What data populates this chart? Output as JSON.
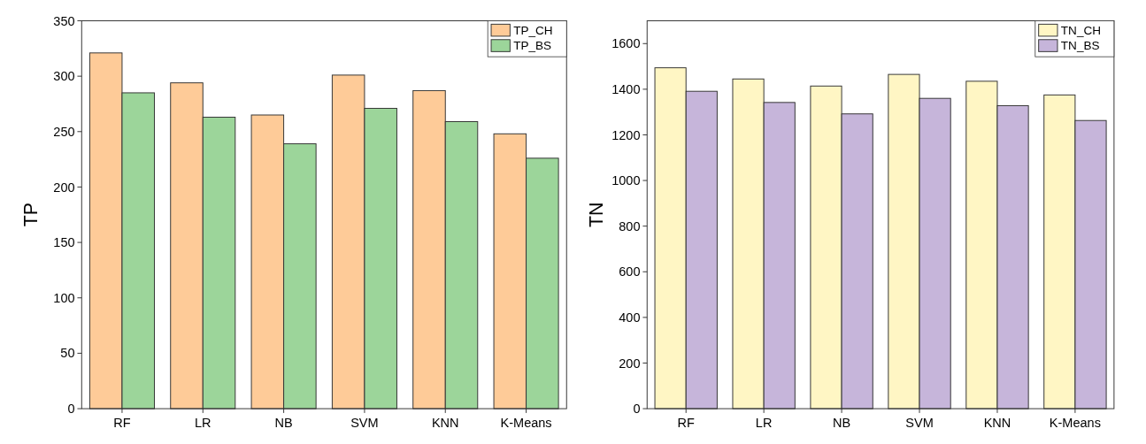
{
  "chart_data": [
    {
      "type": "bar",
      "ylabel": "TP",
      "categories": [
        "RF",
        "LR",
        "NB",
        "SVM",
        "KNN",
        "K-Means"
      ],
      "series": [
        {
          "name": "TP_CH",
          "color": "#fecb98",
          "values": [
            321,
            294,
            265,
            301,
            287,
            248
          ]
        },
        {
          "name": "TP_BS",
          "color": "#9cd59a",
          "values": [
            285,
            263,
            239,
            271,
            259,
            226
          ]
        }
      ],
      "ylim": [
        0,
        350
      ],
      "yticks": [
        0,
        50,
        100,
        150,
        200,
        250,
        300,
        350
      ],
      "legend": "top right",
      "grid": false
    },
    {
      "type": "bar",
      "ylabel": "TN",
      "categories": [
        "RF",
        "LR",
        "NB",
        "SVM",
        "KNN",
        "K-Means"
      ],
      "series": [
        {
          "name": "TN_CH",
          "color": "#fff6c4",
          "values": [
            1494,
            1445,
            1414,
            1465,
            1435,
            1375
          ]
        },
        {
          "name": "TN_BS",
          "color": "#c6b5da",
          "values": [
            1391,
            1342,
            1292,
            1360,
            1328,
            1263
          ]
        }
      ],
      "ylim": [
        0,
        1700
      ],
      "yticks": [
        0,
        200,
        400,
        600,
        800,
        1000,
        1200,
        1400,
        1600
      ],
      "legend": "top right",
      "grid": false
    }
  ]
}
